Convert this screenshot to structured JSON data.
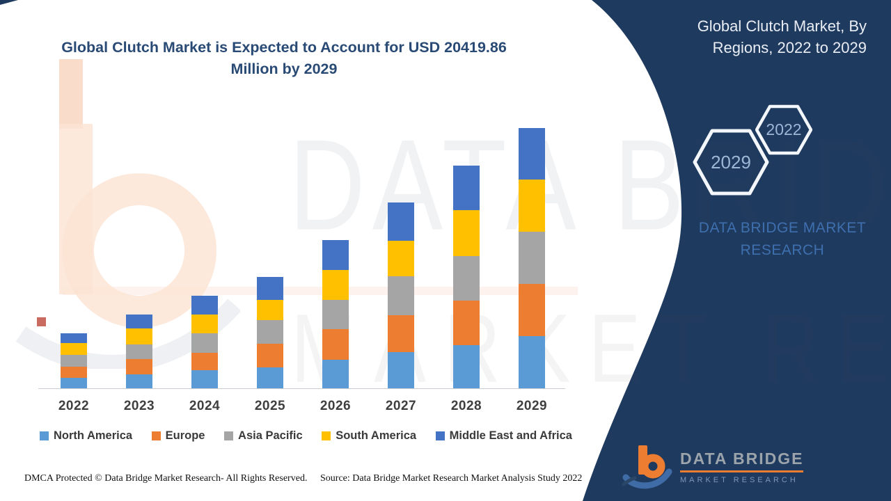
{
  "title": {
    "text": "Global Clutch Market is Expected to Account for USD 20419.86 Million by 2029"
  },
  "side_panel": {
    "heading": "Global Clutch Market, By Regions, 2022 to 2029",
    "hexagon_front": {
      "label": "2022"
    },
    "hexagon_back": {
      "label": "2029"
    },
    "brand": "DATA BRIDGE MARKET RESEARCH",
    "panel_color": "#1f3a5f",
    "heading_color": "#e9edf4",
    "hex_label_color": "#9cb6d5",
    "brand_color": "#3e6fae"
  },
  "watermark": {
    "line1": "DATA BRIDGE",
    "line2": "MARKET RESEARCH"
  },
  "logo": {
    "brand": "DATA BRIDGE",
    "sub": "MARKET RESEARCH"
  },
  "footer": {
    "dmca": "DMCA Protected © Data Bridge Market Research- All Rights Reserved.",
    "source": "Source: Data Bridge Market Research Market Analysis Study 2022"
  },
  "chart_data": {
    "type": "bar",
    "stacked": true,
    "title": "Global Clutch Market, By Regions, 2022 to 2029",
    "categories": [
      "2022",
      "2023",
      "2024",
      "2025",
      "2026",
      "2027",
      "2028",
      "2029"
    ],
    "series": [
      {
        "name": "North America",
        "color": "#5B9BD5",
        "values": [
          15,
          20,
          26,
          30,
          41,
          52,
          62,
          75
        ]
      },
      {
        "name": "Europe",
        "color": "#ED7D31",
        "values": [
          16,
          22,
          25,
          34,
          44,
          53,
          64,
          75
        ]
      },
      {
        "name": "Asia Pacific",
        "color": "#A5A5A5",
        "values": [
          17,
          21,
          28,
          34,
          42,
          56,
          64,
          75
        ]
      },
      {
        "name": "South America",
        "color": "#FFC000",
        "values": [
          17,
          23,
          27,
          29,
          43,
          51,
          66,
          75
        ]
      },
      {
        "name": "Middle East and Africa",
        "color": "#4472C4",
        "values": [
          14,
          20,
          27,
          33,
          43,
          55,
          64,
          74
        ]
      }
    ],
    "totals": [
      79,
      106,
      133,
      160,
      213,
      267,
      320,
      374
    ],
    "value_note": "No numeric axis is shown in the figure; values are relative stack heights estimated from pixels",
    "xlabel": "",
    "ylabel": "",
    "grid": false,
    "legend_position": "bottom"
  }
}
